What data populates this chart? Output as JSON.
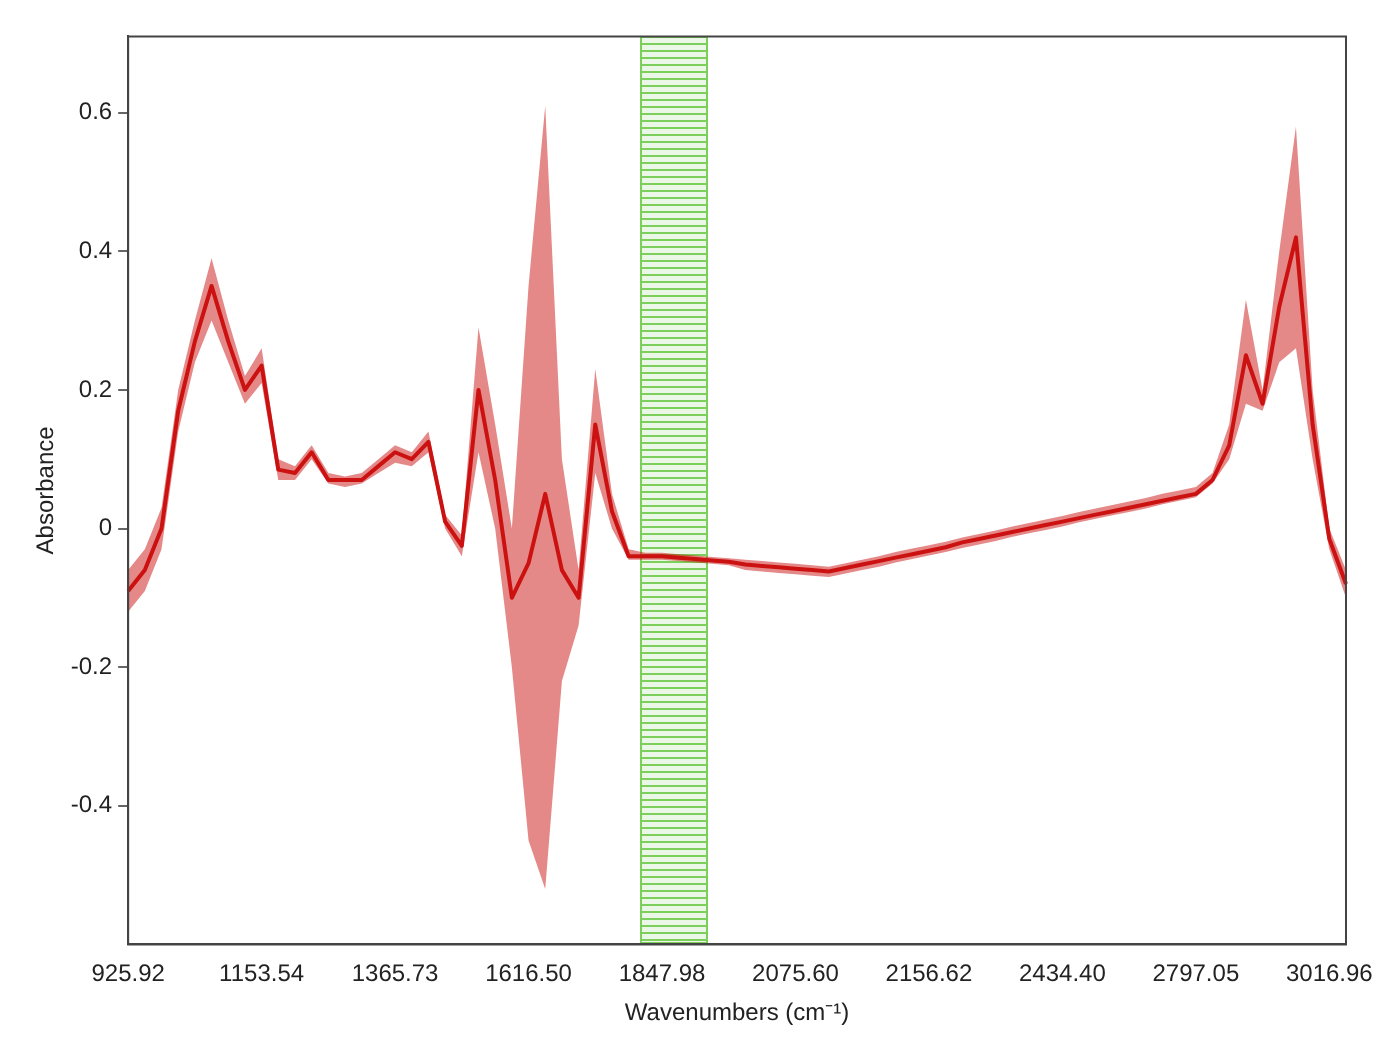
{
  "chart_data": {
    "type": "line",
    "xlabel": "Wavenumbers (cm⁻¹)",
    "ylabel": "Absorbance",
    "categories": [
      "925.92",
      null,
      null,
      null,
      null,
      null,
      null,
      null,
      "1153.54",
      null,
      null,
      null,
      null,
      null,
      null,
      null,
      "1365.73",
      null,
      null,
      null,
      null,
      null,
      null,
      null,
      "1616.50",
      null,
      null,
      null,
      null,
      null,
      null,
      null,
      "1847.98",
      null,
      null,
      null,
      null,
      null,
      null,
      null,
      "2075.60",
      null,
      null,
      null,
      null,
      null,
      null,
      null,
      "2156.62",
      null,
      null,
      null,
      null,
      null,
      null,
      null,
      "2434.40",
      null,
      null,
      null,
      null,
      null,
      null,
      null,
      "2797.05",
      null,
      null,
      null,
      null,
      null,
      null,
      null,
      "3016.96",
      null
    ],
    "series": [
      {
        "color": "#cc1111",
        "values": [
          -0.09,
          -0.06,
          0,
          0.17,
          0.27,
          0.35,
          0.27,
          0.2,
          0.235,
          0.085,
          0.08,
          0.11,
          0.07,
          0.07,
          0.07,
          0.09,
          0.11,
          0.1,
          0.125,
          0.01,
          -0.025,
          0.2,
          0.07,
          -0.1,
          -0.05,
          0.05,
          -0.06,
          -0.1,
          0.15,
          0.025,
          -0.04,
          -0.04,
          -0.04,
          -0.042,
          -0.044,
          -0.046,
          -0.048,
          -0.052,
          -0.054,
          -0.056,
          -0.058,
          -0.06,
          -0.062,
          -0.057,
          -0.052,
          -0.047,
          -0.042,
          -0.037,
          -0.032,
          -0.027,
          -0.02,
          -0.015,
          -0.01,
          -0.005,
          0,
          0.005,
          0.01,
          0.015,
          0.02,
          0.025,
          0.03,
          0.035,
          0.04,
          0.045,
          0.05,
          0.07,
          0.12,
          0.25,
          0.18,
          0.32,
          0.42,
          0.15,
          -0.015,
          -0.08
        ],
        "lower": [
          -0.12,
          -0.09,
          -0.03,
          0.14,
          0.24,
          0.3,
          0.24,
          0.18,
          0.21,
          0.07,
          0.07,
          0.1,
          0.065,
          0.06,
          0.065,
          0.08,
          0.095,
          0.09,
          0.11,
          0,
          -0.04,
          0.11,
          0,
          -0.2,
          -0.45,
          -0.52,
          -0.22,
          -0.14,
          0.08,
          0,
          -0.045,
          -0.045,
          -0.045,
          -0.047,
          -0.049,
          -0.051,
          -0.053,
          -0.06,
          -0.062,
          -0.064,
          -0.066,
          -0.068,
          -0.07,
          -0.065,
          -0.06,
          -0.055,
          -0.049,
          -0.044,
          -0.039,
          -0.034,
          -0.028,
          -0.023,
          -0.018,
          -0.012,
          -0.007,
          -0.002,
          0.003,
          0.009,
          0.014,
          0.019,
          0.024,
          0.029,
          0.035,
          0.04,
          0.045,
          0.065,
          0.1,
          0.18,
          0.17,
          0.24,
          0.26,
          0.1,
          -0.03,
          -0.1
        ],
        "upper": [
          -0.06,
          -0.03,
          0.03,
          0.2,
          0.3,
          0.39,
          0.3,
          0.22,
          0.26,
          0.1,
          0.09,
          0.12,
          0.08,
          0.075,
          0.08,
          0.1,
          0.12,
          0.11,
          0.14,
          0.02,
          -0.01,
          0.29,
          0.15,
          0,
          0.35,
          0.61,
          0.1,
          -0.06,
          0.23,
          0.05,
          -0.03,
          -0.035,
          -0.035,
          -0.037,
          -0.039,
          -0.041,
          -0.043,
          -0.045,
          -0.047,
          -0.049,
          -0.051,
          -0.053,
          -0.055,
          -0.05,
          -0.045,
          -0.04,
          -0.034,
          -0.029,
          -0.024,
          -0.019,
          -0.013,
          -0.008,
          -0.003,
          0.003,
          0.008,
          0.013,
          0.018,
          0.024,
          0.029,
          0.034,
          0.039,
          0.044,
          0.05,
          0.055,
          0.06,
          0.08,
          0.15,
          0.33,
          0.2,
          0.4,
          0.58,
          0.2,
          0,
          -0.06
        ]
      }
    ],
    "ylim": [
      -0.6,
      0.71
    ],
    "yticks": [
      -0.4,
      -0.2,
      0,
      0.2,
      0.4,
      0.6
    ],
    "grid": false,
    "legend": false,
    "marker": "none"
  }
}
